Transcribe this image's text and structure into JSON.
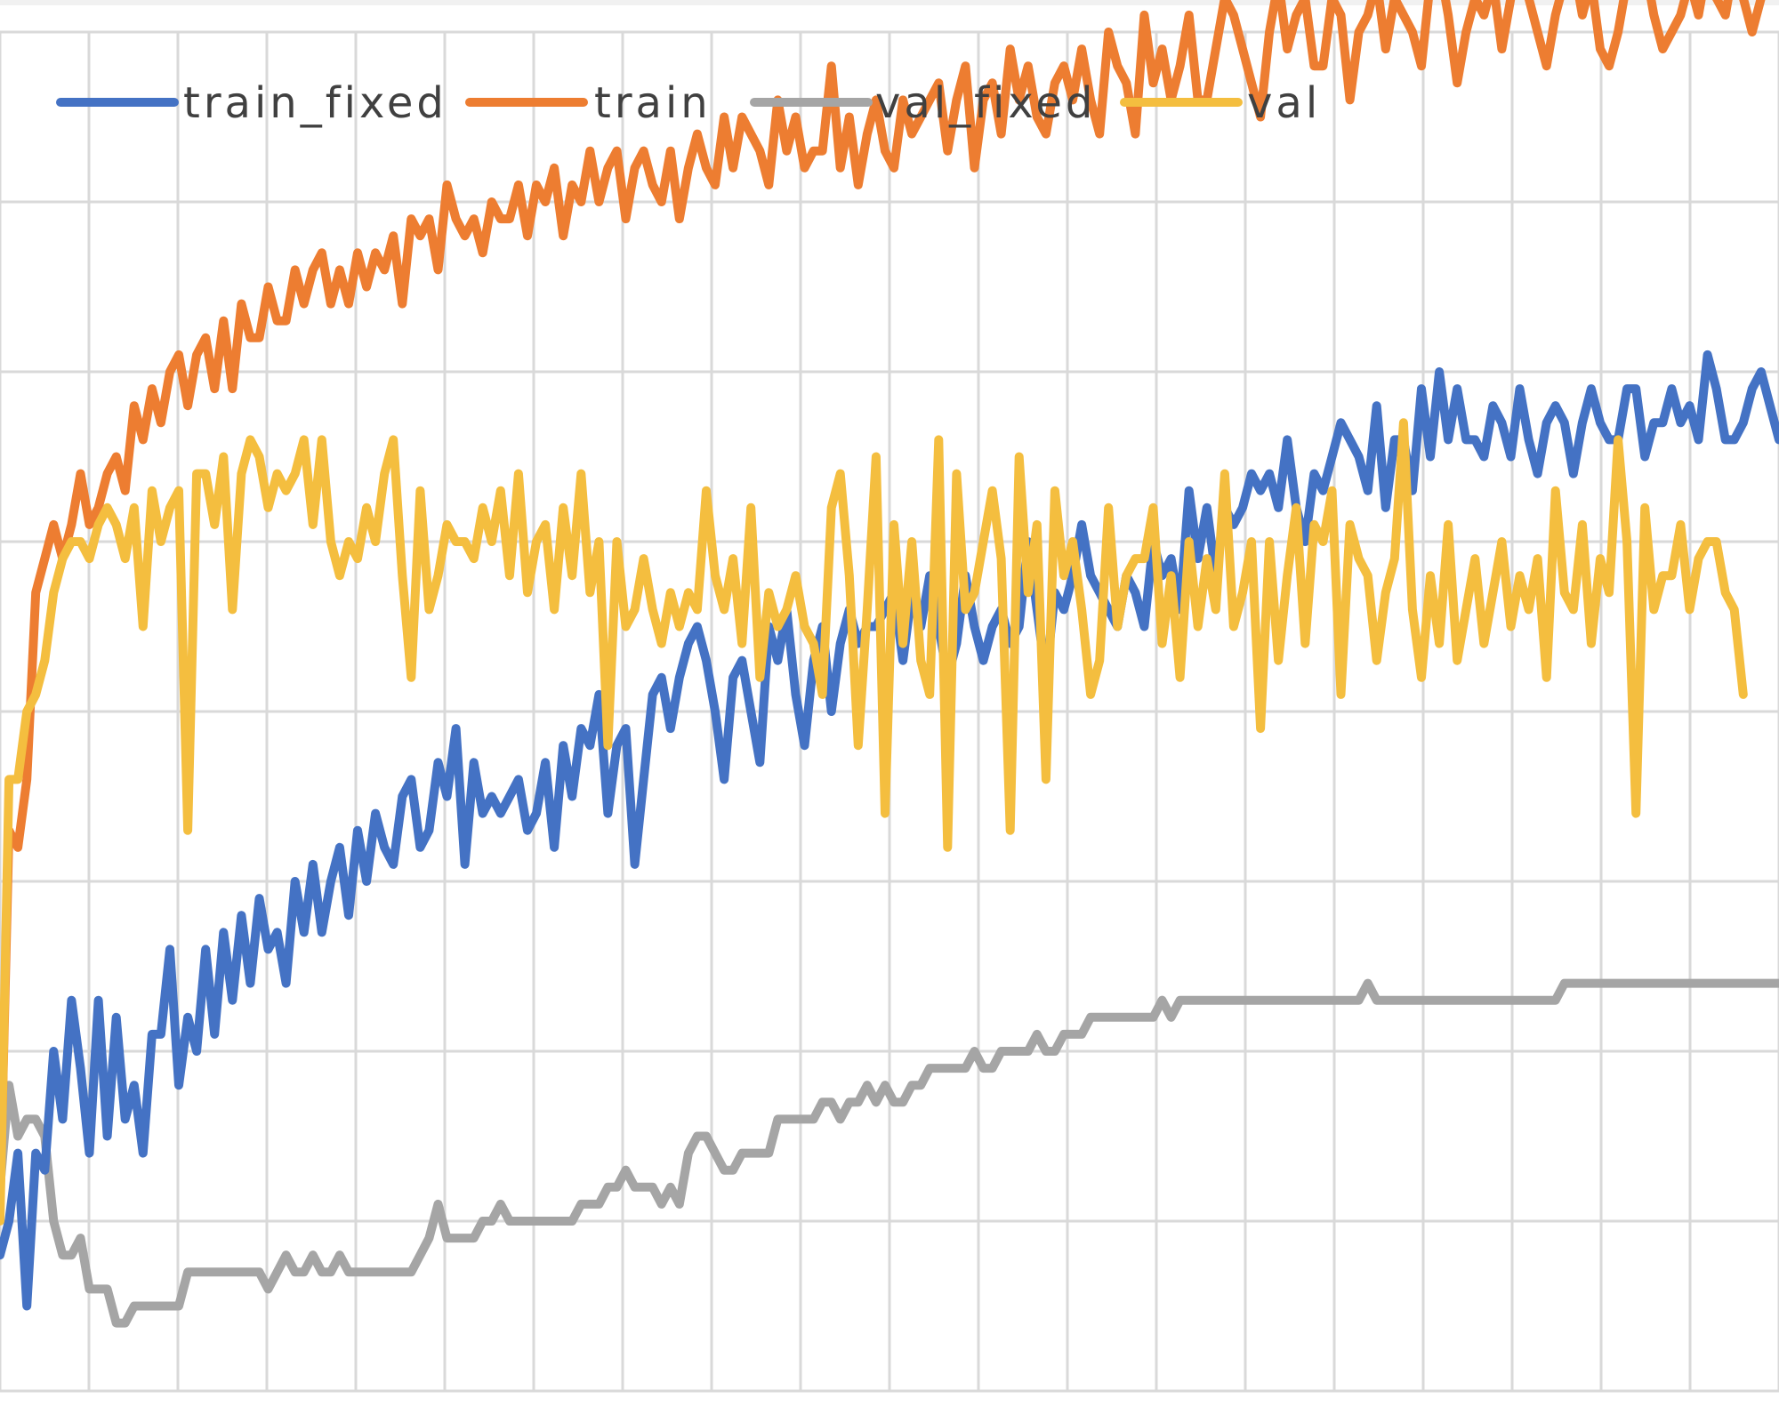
{
  "chart_data": {
    "type": "line",
    "title": "",
    "xlabel": "",
    "ylabel": "",
    "grid": true,
    "legend_position": "top-left",
    "x_count": 200,
    "y_range_grid_units": [
      0,
      8
    ],
    "series": [
      {
        "name": "train_fixed",
        "color": "#4472C4",
        "values": [
          0.8,
          1.0,
          1.4,
          0.5,
          1.4,
          1.3,
          2.0,
          1.6,
          2.3,
          1.9,
          1.4,
          2.3,
          1.5,
          2.2,
          1.6,
          1.8,
          1.4,
          2.1,
          2.1,
          2.6,
          1.8,
          2.2,
          2.0,
          2.6,
          2.1,
          2.7,
          2.3,
          2.8,
          2.4,
          2.9,
          2.6,
          2.7,
          2.4,
          3.0,
          2.7,
          3.1,
          2.7,
          3.0,
          3.2,
          2.8,
          3.3,
          3.0,
          3.4,
          3.2,
          3.1,
          3.5,
          3.6,
          3.2,
          3.3,
          3.7,
          3.5,
          3.9,
          3.1,
          3.7,
          3.4,
          3.5,
          3.4,
          3.5,
          3.6,
          3.3,
          3.4,
          3.7,
          3.2,
          3.8,
          3.5,
          3.9,
          3.8,
          4.1,
          3.4,
          3.8,
          3.9,
          3.1,
          3.6,
          4.1,
          4.2,
          3.9,
          4.2,
          4.4,
          4.5,
          4.3,
          4.0,
          3.6,
          4.2,
          4.3,
          4.0,
          3.7,
          4.5,
          4.3,
          4.6,
          4.1,
          3.8,
          4.3,
          4.5,
          4.0,
          4.4,
          4.6,
          4.4,
          4.5,
          4.5,
          4.6,
          4.7,
          4.3,
          4.7,
          4.5,
          4.8,
          4.5,
          4.2,
          4.4,
          4.8,
          4.5,
          4.3,
          4.5,
          4.6,
          4.4,
          4.5,
          5.0,
          4.6,
          4.2,
          4.7,
          4.6,
          4.8,
          5.1,
          4.8,
          4.7,
          4.6,
          4.5,
          4.8,
          4.7,
          4.5,
          5.0,
          4.8,
          4.9,
          4.6,
          5.3,
          4.9,
          5.2,
          4.8,
          5.2,
          5.1,
          5.2,
          5.4,
          5.3,
          5.4,
          5.2,
          5.6,
          5.2,
          5.0,
          5.4,
          5.3,
          5.5,
          5.7,
          5.6,
          5.5,
          5.3,
          5.8,
          5.2,
          5.6,
          5.6,
          5.3,
          5.9,
          5.5,
          6.0,
          5.6,
          5.9,
          5.6,
          5.6,
          5.5,
          5.8,
          5.7,
          5.5,
          5.9,
          5.6,
          5.4,
          5.7,
          5.8,
          5.7,
          5.4,
          5.7,
          5.9,
          5.7,
          5.6,
          5.6,
          5.9,
          5.9,
          5.5,
          5.7,
          5.7,
          5.9,
          5.7,
          5.8,
          5.6,
          6.1,
          5.9,
          5.6,
          5.6,
          5.7,
          5.9,
          6.0,
          5.8,
          5.6,
          5.7,
          6.1,
          5.9,
          5.8,
          6.0,
          5.9
        ],
        "values_note": ""
      },
      {
        "name": "train",
        "color": "#ED7D31",
        "values": [
          1.1,
          3.3,
          3.2,
          3.6,
          4.7,
          4.9,
          5.1,
          4.9,
          5.1,
          5.4,
          5.1,
          5.2,
          5.4,
          5.5,
          5.3,
          5.8,
          5.6,
          5.9,
          5.7,
          6.0,
          6.1,
          5.8,
          6.1,
          6.2,
          5.9,
          6.3,
          5.9,
          6.4,
          6.2,
          6.2,
          6.5,
          6.3,
          6.3,
          6.6,
          6.4,
          6.6,
          6.7,
          6.4,
          6.6,
          6.4,
          6.7,
          6.5,
          6.7,
          6.6,
          6.8,
          6.4,
          6.9,
          6.8,
          6.9,
          6.6,
          7.1,
          6.9,
          6.8,
          6.9,
          6.7,
          7.0,
          6.9,
          6.9,
          7.1,
          6.8,
          7.1,
          7.0,
          7.2,
          6.8,
          7.1,
          7.0,
          7.3,
          7.0,
          7.2,
          7.3,
          6.9,
          7.2,
          7.3,
          7.1,
          7.0,
          7.3,
          6.9,
          7.2,
          7.4,
          7.2,
          7.1,
          7.5,
          7.2,
          7.5,
          7.4,
          7.3,
          7.1,
          7.6,
          7.3,
          7.5,
          7.2,
          7.3,
          7.3,
          7.8,
          7.2,
          7.5,
          7.1,
          7.4,
          7.6,
          7.3,
          7.2,
          7.6,
          7.4,
          7.5,
          7.6,
          7.7,
          7.3,
          7.6,
          7.8,
          7.2,
          7.6,
          7.7,
          7.4,
          7.9,
          7.6,
          7.8,
          7.5,
          7.4,
          7.7,
          7.8,
          7.6,
          7.9,
          7.6,
          7.4,
          8.0,
          7.8,
          7.7,
          7.4,
          8.1,
          7.7,
          7.9,
          7.6,
          7.8,
          8.1,
          7.6,
          7.6,
          7.9,
          8.2,
          8.1,
          7.9,
          7.7,
          7.5,
          8.0,
          8.3,
          7.9,
          8.1,
          8.2,
          7.8,
          7.8,
          8.2,
          8.1,
          7.6,
          8.0,
          8.1,
          8.3,
          7.9,
          8.2,
          8.1,
          8.0,
          7.8,
          8.3,
          8.4,
          8.1,
          7.7,
          8.0,
          8.2,
          8.1,
          8.3,
          7.9,
          8.2,
          8.3,
          8.2,
          8.0,
          7.8,
          8.1,
          8.3,
          8.4,
          8.1,
          8.3,
          7.9,
          7.8,
          8.0,
          8.3,
          8.5,
          8.4,
          8.1,
          7.9,
          8.0,
          8.1,
          8.3,
          8.1,
          8.4,
          8.2,
          8.1,
          8.4,
          8.2,
          8.0,
          8.2,
          8.5,
          8.7,
          8.4,
          8.2,
          8.1
        ],
        "values_note": ""
      },
      {
        "name": "val_fixed",
        "color": "#A5A5A5",
        "values": [
          1.2,
          1.8,
          1.5,
          1.6,
          1.6,
          1.5,
          1.0,
          0.8,
          0.8,
          0.9,
          0.6,
          0.6,
          0.6,
          0.4,
          0.4,
          0.5,
          0.5,
          0.5,
          0.5,
          0.5,
          0.5,
          0.7,
          0.7,
          0.7,
          0.7,
          0.7,
          0.7,
          0.7,
          0.7,
          0.7,
          0.6,
          0.7,
          0.8,
          0.7,
          0.7,
          0.8,
          0.7,
          0.7,
          0.8,
          0.7,
          0.7,
          0.7,
          0.7,
          0.7,
          0.7,
          0.7,
          0.7,
          0.8,
          0.9,
          1.1,
          0.9,
          0.9,
          0.9,
          0.9,
          1.0,
          1.0,
          1.1,
          1.0,
          1.0,
          1.0,
          1.0,
          1.0,
          1.0,
          1.0,
          1.0,
          1.1,
          1.1,
          1.1,
          1.2,
          1.2,
          1.3,
          1.2,
          1.2,
          1.2,
          1.1,
          1.2,
          1.1,
          1.4,
          1.5,
          1.5,
          1.4,
          1.3,
          1.3,
          1.4,
          1.4,
          1.4,
          1.4,
          1.6,
          1.6,
          1.6,
          1.6,
          1.6,
          1.7,
          1.7,
          1.6,
          1.7,
          1.7,
          1.8,
          1.7,
          1.8,
          1.7,
          1.7,
          1.8,
          1.8,
          1.9,
          1.9,
          1.9,
          1.9,
          1.9,
          2.0,
          1.9,
          1.9,
          2.0,
          2.0,
          2.0,
          2.0,
          2.1,
          2.0,
          2.0,
          2.1,
          2.1,
          2.1,
          2.2,
          2.2,
          2.2,
          2.2,
          2.2,
          2.2,
          2.2,
          2.2,
          2.3,
          2.2,
          2.3,
          2.3,
          2.3,
          2.3,
          2.3,
          2.3,
          2.3,
          2.3,
          2.3,
          2.3,
          2.3,
          2.3,
          2.3,
          2.3,
          2.3,
          2.3,
          2.3,
          2.3,
          2.3,
          2.3,
          2.3,
          2.4,
          2.3,
          2.3,
          2.3,
          2.3,
          2.3,
          2.3,
          2.3,
          2.3,
          2.3,
          2.3,
          2.3,
          2.3,
          2.3,
          2.3,
          2.3,
          2.3,
          2.3,
          2.3,
          2.3,
          2.3,
          2.3,
          2.4,
          2.4,
          2.4,
          2.4,
          2.4,
          2.4,
          2.4,
          2.4,
          2.4,
          2.4,
          2.4,
          2.4,
          2.4,
          2.4,
          2.4,
          2.4,
          2.4,
          2.4,
          2.4,
          2.4,
          2.4,
          2.4,
          2.4,
          2.4,
          2.4,
          2.4,
          2.4,
          2.4,
          2.3
        ],
        "values_note": ""
      },
      {
        "name": "val",
        "color": "#F4BE3F",
        "values": [
          1.0,
          3.6,
          3.6,
          4.0,
          4.1,
          4.3,
          4.7,
          4.9,
          5.0,
          5.0,
          4.9,
          5.1,
          5.2,
          5.1,
          4.9,
          5.2,
          4.5,
          5.3,
          5.0,
          5.2,
          5.3,
          3.3,
          5.4,
          5.4,
          5.1,
          5.5,
          4.6,
          5.4,
          5.6,
          5.5,
          5.2,
          5.4,
          5.3,
          5.4,
          5.6,
          5.1,
          5.6,
          5.0,
          4.8,
          5.0,
          4.9,
          5.2,
          5.0,
          5.4,
          5.6,
          4.8,
          4.2,
          5.3,
          4.6,
          4.8,
          5.1,
          5.0,
          5.0,
          4.9,
          5.2,
          5.0,
          5.3,
          4.8,
          5.4,
          4.7,
          5.0,
          5.1,
          4.6,
          5.2,
          4.8,
          5.4,
          4.7,
          5.0,
          3.8,
          5.0,
          4.5,
          4.6,
          4.9,
          4.6,
          4.4,
          4.7,
          4.5,
          4.7,
          4.6,
          5.3,
          4.8,
          4.6,
          4.9,
          4.4,
          5.2,
          4.2,
          4.7,
          4.5,
          4.6,
          4.8,
          4.5,
          4.4,
          4.1,
          5.2,
          5.4,
          4.8,
          3.8,
          4.6,
          5.5,
          3.4,
          5.1,
          4.4,
          5.0,
          4.3,
          4.1,
          5.6,
          3.2,
          5.4,
          4.6,
          4.7,
          5.0,
          5.3,
          4.9,
          3.3,
          5.5,
          4.7,
          5.1,
          3.6,
          5.3,
          4.8,
          5.0,
          4.6,
          4.1,
          4.3,
          5.2,
          4.5,
          4.8,
          4.9,
          4.9,
          5.2,
          4.4,
          4.8,
          4.2,
          5.0,
          4.5,
          4.9,
          4.6,
          5.4,
          4.5,
          4.7,
          5.0,
          3.9,
          5.0,
          4.3,
          4.8,
          5.2,
          4.4,
          5.1,
          5.0,
          5.3,
          4.1,
          5.1,
          4.9,
          4.8,
          4.3,
          4.7,
          4.9,
          5.7,
          4.6,
          4.2,
          4.8,
          4.4,
          5.1,
          4.3,
          4.6,
          4.9,
          4.4,
          4.7,
          5.0,
          4.5,
          4.8,
          4.6,
          4.9,
          4.2,
          5.3,
          4.7,
          4.6,
          5.1,
          4.4,
          4.9,
          4.7,
          5.6,
          5.0,
          3.4,
          5.2,
          4.6,
          4.8,
          4.8,
          5.1,
          4.6,
          4.9,
          5.0,
          5.0,
          4.7,
          4.6,
          4.1
        ],
        "values_note": ""
      }
    ]
  }
}
